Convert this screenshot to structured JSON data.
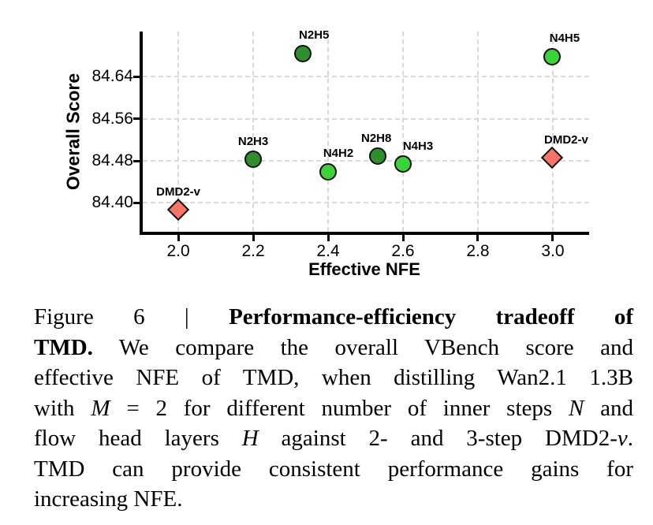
{
  "chart_data": {
    "type": "scatter",
    "xlabel": "Effective NFE",
    "ylabel": "Overall Score",
    "xlim": [
      1.905,
      3.097
    ],
    "ylim": [
      84.345,
      84.726
    ],
    "grid": true,
    "legend": "none",
    "x_ticks": [
      {
        "v": 2.0,
        "label": "2.0"
      },
      {
        "v": 2.2,
        "label": "2.2"
      },
      {
        "v": 2.4,
        "label": "2.4"
      },
      {
        "v": 2.6,
        "label": "2.6"
      },
      {
        "v": 2.8,
        "label": "2.8"
      },
      {
        "v": 3.0,
        "label": "3.0"
      }
    ],
    "y_ticks": [
      {
        "v": 84.4,
        "label": "84.40"
      },
      {
        "v": 84.48,
        "label": "84.48"
      },
      {
        "v": 84.56,
        "label": "84.56"
      },
      {
        "v": 84.64,
        "label": "84.64"
      }
    ],
    "points": [
      {
        "label": "DMD2-v",
        "x": 2.0,
        "y": 84.386,
        "marker": "diamond",
        "color": "#f87468",
        "label_dx": 0
      },
      {
        "label": "N2H3",
        "x": 2.2,
        "y": 84.482,
        "marker": "circle",
        "color": "#2f8f2f",
        "label_dx": 0
      },
      {
        "label": "N2H5",
        "x": 2.333,
        "y": 84.684,
        "marker": "circle",
        "color": "#2f8f2f",
        "label_dx": 14
      },
      {
        "label": "N4H2",
        "x": 2.4,
        "y": 84.459,
        "marker": "circle",
        "color": "#3cd23c",
        "label_dx": 13
      },
      {
        "label": "N2H8",
        "x": 2.533,
        "y": 84.488,
        "marker": "circle",
        "color": "#2f8f2f",
        "label_dx": -2
      },
      {
        "label": "N4H3",
        "x": 2.6,
        "y": 84.473,
        "marker": "circle",
        "color": "#3cd23c",
        "label_dx": 19
      },
      {
        "label": "DMD2-v",
        "x": 3.0,
        "y": 84.485,
        "marker": "diamond",
        "color": "#f87468",
        "label_dx": 17
      },
      {
        "label": "N4H5",
        "x": 3.0,
        "y": 84.678,
        "marker": "circle",
        "color": "#3cd23c",
        "label_dx": 15
      }
    ],
    "marker_edge_color": "#111111",
    "grid_color": "#d9d9d9"
  },
  "caption": {
    "lines": [
      {
        "justify": true,
        "segments": [
          {
            "t": "Figure 6 | ",
            "s": "r"
          },
          {
            "t": "Performance-efficiency tradeoff of",
            "s": "b"
          }
        ]
      },
      {
        "justify": true,
        "segments": [
          {
            "t": "TMD.",
            "s": "b"
          },
          {
            "t": " We compare the overall VBench score and",
            "s": "r"
          }
        ]
      },
      {
        "justify": true,
        "segments": [
          {
            "t": "effective NFE of TMD, when distilling Wan2.1 1.3B",
            "s": "r"
          }
        ]
      },
      {
        "justify": true,
        "segments": [
          {
            "t": "with ",
            "s": "r"
          },
          {
            "t": "M",
            "s": "i"
          },
          {
            "t": " = 2 for different number of inner steps ",
            "s": "r"
          },
          {
            "t": "N",
            "s": "i"
          },
          {
            "t": " and",
            "s": "r"
          }
        ]
      },
      {
        "justify": true,
        "segments": [
          {
            "t": "flow head layers ",
            "s": "r"
          },
          {
            "t": "H",
            "s": "i"
          },
          {
            "t": " against 2- and 3-step DMD2-",
            "s": "r"
          },
          {
            "t": "v",
            "s": "i"
          },
          {
            "t": ".",
            "s": "r"
          }
        ]
      },
      {
        "justify": true,
        "segments": [
          {
            "t": "TMD can provide consistent performance gains for",
            "s": "r"
          }
        ]
      },
      {
        "justify": false,
        "segments": [
          {
            "t": "increasing NFE.",
            "s": "r"
          }
        ]
      }
    ]
  }
}
